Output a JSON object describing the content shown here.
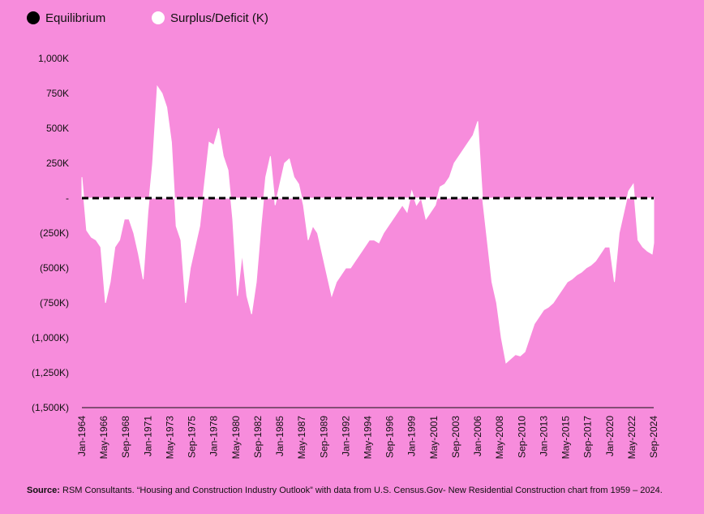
{
  "chart_data": {
    "type": "area",
    "legend_position": "top-left",
    "reference_line": {
      "name": "Equilibrium",
      "value": 0,
      "color": "#000000",
      "style": "dashed"
    },
    "series": [
      {
        "name": "Surplus/Deficit (K)",
        "color": "#ffffff",
        "x": [
          "Jan-1964",
          "Jul-1964",
          "Jan-1965",
          "Jul-1965",
          "Jan-1966",
          "Jul-1966",
          "Jan-1967",
          "Jul-1967",
          "Jan-1968",
          "Jul-1968",
          "Jan-1969",
          "Jul-1969",
          "Jan-1970",
          "Jul-1970",
          "Jan-1971",
          "Jul-1971",
          "Jan-1972",
          "Jul-1972",
          "Jan-1973",
          "Jul-1973",
          "Jan-1974",
          "Jul-1974",
          "Jan-1975",
          "Jul-1975",
          "Jan-1976",
          "Jul-1976",
          "Jan-1977",
          "Jul-1977",
          "Jan-1978",
          "Jul-1978",
          "Jan-1979",
          "Jul-1979",
          "Jan-1980",
          "Jul-1980",
          "Jan-1981",
          "Jul-1981",
          "Jan-1982",
          "Jul-1982",
          "Jan-1983",
          "Jul-1983",
          "Jan-1984",
          "Jul-1984",
          "Jan-1985",
          "Jul-1985",
          "Jan-1986",
          "Jul-1986",
          "Jan-1987",
          "Jul-1987",
          "Jan-1988",
          "Jul-1988",
          "Jan-1989",
          "Jul-1989",
          "Jan-1990",
          "Jul-1990",
          "Jan-1991",
          "Jul-1991",
          "Jan-1992",
          "Jul-1992",
          "Jan-1993",
          "Jul-1993",
          "Jan-1994",
          "Jul-1994",
          "Jan-1995",
          "Jul-1995",
          "Jan-1996",
          "Jul-1996",
          "Jan-1997",
          "Jul-1997",
          "Jan-1998",
          "Jul-1998",
          "Jan-1999",
          "Jul-1999",
          "Jan-2000",
          "Jul-2000",
          "Jan-2001",
          "Jul-2001",
          "Jan-2002",
          "Jul-2002",
          "Jan-2003",
          "Jul-2003",
          "Jan-2004",
          "Jul-2004",
          "Jan-2005",
          "Jul-2005",
          "Jan-2006",
          "Jul-2006",
          "Jan-2007",
          "Jul-2007",
          "Jan-2008",
          "Jul-2008",
          "Jan-2009",
          "Jul-2009",
          "Jan-2010",
          "Jul-2010",
          "Jan-2011",
          "Jul-2011",
          "Jan-2012",
          "Jul-2012",
          "Jan-2013",
          "Jul-2013",
          "Jan-2014",
          "Jul-2014",
          "Jan-2015",
          "Jul-2015",
          "Jan-2016",
          "Jul-2016",
          "Jan-2017",
          "Jul-2017",
          "Jan-2018",
          "Jul-2018",
          "Jan-2019",
          "Jul-2019",
          "Jan-2020",
          "Jul-2020",
          "Jan-2021",
          "Jul-2021",
          "Jan-2022",
          "Jul-2022",
          "Jan-2023",
          "Jul-2023",
          "Jan-2024",
          "Jul-2024",
          "Sep-2024"
        ],
        "values": [
          150,
          -230,
          -280,
          -300,
          -350,
          -750,
          -600,
          -350,
          -300,
          -150,
          -150,
          -250,
          -400,
          -580,
          -100,
          250,
          800,
          750,
          650,
          400,
          -200,
          -300,
          -750,
          -500,
          -350,
          -200,
          100,
          400,
          380,
          500,
          300,
          200,
          -150,
          -700,
          -400,
          -700,
          -830,
          -600,
          -200,
          150,
          300,
          -50,
          100,
          250,
          280,
          150,
          100,
          -50,
          -300,
          -200,
          -250,
          -400,
          -550,
          -700,
          -600,
          -550,
          -500,
          -500,
          -450,
          -400,
          -350,
          -300,
          -300,
          -320,
          -250,
          -200,
          -150,
          -100,
          -50,
          -100,
          50,
          -50,
          0,
          -150,
          -100,
          -50,
          80,
          100,
          150,
          250,
          300,
          350,
          400,
          450,
          550,
          0,
          -300,
          -600,
          -750,
          -1000,
          -1180,
          -1150,
          -1120,
          -1130,
          -1100,
          -1000,
          -900,
          -850,
          -800,
          -780,
          -750,
          -700,
          -650,
          -600,
          -580,
          -550,
          -530,
          -500,
          -480,
          -450,
          -400,
          -350,
          -350,
          -600,
          -250,
          -100,
          50,
          100,
          -300,
          -350,
          -380,
          -400,
          -320
        ]
      }
    ],
    "xticks": [
      "Jan-1964",
      "May-1966",
      "Sep-1968",
      "Jan-1971",
      "May-1973",
      "Sep-1975",
      "Jan-1978",
      "May-1980",
      "Sep-1982",
      "Jan-1985",
      "May-1987",
      "Sep-1989",
      "Jan-1992",
      "May-1994",
      "Sep-1996",
      "Jan-1999",
      "May-2001",
      "Sep-2003",
      "Jan-2006",
      "May-2008",
      "Sep-2010",
      "Jan-2013",
      "May-2015",
      "Sep-2017",
      "Jan-2020",
      "May-2022",
      "Sep-2024"
    ],
    "ylim": [
      -1500,
      1000
    ],
    "yticks": [
      {
        "value": 1000,
        "label": "1,000K"
      },
      {
        "value": 750,
        "label": "750K"
      },
      {
        "value": 500,
        "label": "500K"
      },
      {
        "value": 250,
        "label": "250K"
      },
      {
        "value": 0,
        "label": "-"
      },
      {
        "value": -250,
        "label": "(250K)"
      },
      {
        "value": -500,
        "label": "(500K)"
      },
      {
        "value": -750,
        "label": "(750K)"
      },
      {
        "value": -1000,
        "label": "(1,000K)"
      },
      {
        "value": -1250,
        "label": "(1,250K)"
      },
      {
        "value": -1500,
        "label": "(1,500K)"
      }
    ],
    "source_label": "Source:",
    "source": "RSM Consultants. “Housing and Construction Industry Outlook” with data from U.S. Census.Gov- New Residential Construction chart from 1959 – 2024."
  }
}
